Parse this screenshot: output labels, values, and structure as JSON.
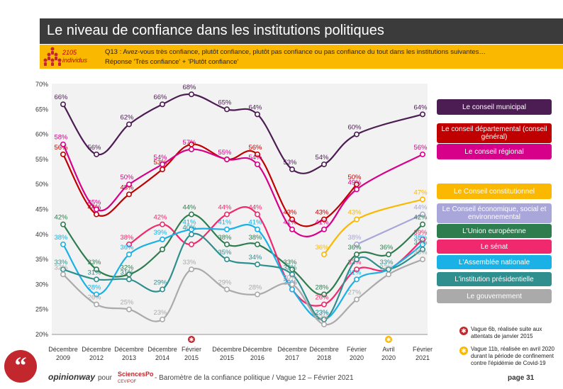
{
  "header": {
    "title": "Le niveau de confiance dans les institutions politiques",
    "sample_count": "2105",
    "sample_unit": "individus",
    "question": "Q13 : Avez-vous très confiance, plutôt confiance, plutôt pas confiance ou pas confiance du tout dans les institutions suivantes…",
    "response_note": "Réponse 'Très confiance' + 'Plutôt confiance'"
  },
  "chart_data": {
    "type": "line",
    "categories": [
      [
        "Décembre",
        "2009"
      ],
      [
        "Décembre",
        "2012"
      ],
      [
        "Décembre",
        "2013"
      ],
      [
        "Décembre",
        "2014"
      ],
      [
        "Février",
        "2015"
      ],
      [
        "Décembre",
        "2015"
      ],
      [
        "Décembre",
        "2016"
      ],
      [
        "Décembre",
        "2017"
      ],
      [
        "Décembre",
        "2018"
      ],
      [
        "Février",
        "2020"
      ],
      [
        "Avril",
        "2020"
      ],
      [
        "Février",
        "2021"
      ]
    ],
    "ylim": [
      20,
      70
    ],
    "yticks": [
      "20%",
      "25%",
      "30%",
      "35%",
      "40%",
      "45%",
      "50%",
      "55%",
      "60%",
      "65%",
      "70%"
    ],
    "series": [
      {
        "name": "Le conseil municipal",
        "color": "#4b1d52",
        "values": [
          66,
          56,
          62,
          66,
          68,
          65,
          64,
          53,
          54,
          60,
          null,
          64
        ],
        "labels": [
          "66%",
          "56%",
          "62%",
          "66%",
          "68%",
          "65%",
          "64%",
          "53%",
          "54%",
          "60%",
          "",
          "64%"
        ]
      },
      {
        "name": "Le conseil départemental (conseil général)",
        "color": "#c00000",
        "values": [
          56,
          44,
          48,
          53,
          58,
          55,
          56,
          43,
          43,
          50,
          null,
          null
        ],
        "labels": [
          "56%",
          "44%",
          "48%",
          "53%",
          "",
          "",
          "56%",
          "43%",
          "43%",
          "50%",
          "",
          ""
        ]
      },
      {
        "name": "Le conseil régional",
        "color": "#d7008a",
        "values": [
          58,
          45,
          50,
          54,
          57,
          55,
          54,
          41,
          41,
          49,
          null,
          56
        ],
        "labels": [
          "58%",
          "45%",
          "50%",
          "54%",
          "57%",
          "55%",
          "54%",
          "41%",
          "41%",
          "49%",
          "",
          "56%"
        ]
      },
      {
        "name": "Le Conseil constitutionnel",
        "color": "#fbb800",
        "values": [
          null,
          null,
          null,
          null,
          null,
          null,
          null,
          null,
          36,
          43,
          null,
          47
        ],
        "labels": [
          "",
          "",
          "",
          "",
          "",
          "",
          "",
          "",
          "36%",
          "43%",
          "",
          "47%"
        ]
      },
      {
        "name": "Le Conseil économique, social et environnemental",
        "color": "#a9a7d9",
        "values": [
          null,
          null,
          null,
          null,
          null,
          null,
          null,
          null,
          null,
          38,
          null,
          44
        ],
        "labels": [
          "",
          "",
          "",
          "",
          "",
          "",
          "",
          "",
          "",
          "38%",
          "",
          "44%"
        ]
      },
      {
        "name": "L'Union européenne",
        "color": "#2e7d4f",
        "values": [
          42,
          33,
          32,
          37,
          44,
          38,
          38,
          33,
          28,
          36,
          36,
          42
        ],
        "labels": [
          "42%",
          "33%",
          "32%",
          "",
          "44%",
          "38%",
          "38%",
          "33%",
          "28%",
          "36%",
          "36%",
          "42%"
        ]
      },
      {
        "name": "Le sénat",
        "color": "#f0296e",
        "values": [
          null,
          null,
          38,
          42,
          38,
          44,
          44,
          29,
          26,
          33,
          33,
          39
        ],
        "labels": [
          "",
          "",
          "38%",
          "42%",
          "",
          "44%",
          "44%",
          "29%",
          "26%",
          "33%",
          "",
          "39%"
        ]
      },
      {
        "name": "L'Assemblée nationale",
        "color": "#19b1e6",
        "values": [
          38,
          28,
          36,
          39,
          41,
          41,
          41,
          29,
          23,
          31,
          33,
          38
        ],
        "labels": [
          "38%",
          "28%",
          "36%",
          "39%",
          "41%",
          "41%",
          "41%",
          "29%",
          "23%",
          "31%",
          "",
          "38%"
        ]
      },
      {
        "name": "L'institution présidentielle",
        "color": "#2f8f8f",
        "values": [
          33,
          31,
          31,
          29,
          40,
          35,
          34,
          32,
          23,
          35,
          33,
          37
        ],
        "labels": [
          "33%",
          "31%",
          "31%",
          "29%",
          "40%",
          "35%",
          "34%",
          "32%",
          "23%",
          "",
          "33%",
          "37%"
        ]
      },
      {
        "name": "Le gouvernement",
        "color": "#aaaaaa",
        "values": [
          32,
          26,
          25,
          23,
          33,
          29,
          28,
          30,
          22,
          27,
          32,
          35
        ],
        "labels": [
          "32%",
          "26%",
          "25%",
          "23%",
          "33%",
          "29%",
          "28%",
          "30%",
          "22%",
          "27%",
          "32%",
          "35%"
        ]
      }
    ],
    "markers": [
      {
        "category_index": 4,
        "color": "#c1272d"
      },
      {
        "category_index": 10,
        "color": "#fbb800"
      }
    ]
  },
  "legend": [
    {
      "label": "Le conseil municipal",
      "color": "#4b1d52"
    },
    {
      "label": "Le conseil départemental (conseil général)",
      "color": "#c00000"
    },
    {
      "label": "Le conseil régional",
      "color": "#d7008a"
    },
    {
      "label": "Le Conseil constitutionnel",
      "color": "#fbb800"
    },
    {
      "label": "Le Conseil économique, social et environnemental",
      "color": "#a9a7d9"
    },
    {
      "label": "L'Union européenne",
      "color": "#2e7d4f"
    },
    {
      "label": "Le sénat",
      "color": "#f0296e"
    },
    {
      "label": "L'Assemblée nationale",
      "color": "#19b1e6"
    },
    {
      "label": "L'institution présidentielle",
      "color": "#2f8f8f"
    },
    {
      "label": "Le gouvernement",
      "color": "#aaaaaa"
    }
  ],
  "notes": {
    "wave6b": "Vague 6b, réalisée suite aux attentats de janvier 2015",
    "wave11b": "Vague 11b, réalisée en avril 2020 durant la période de confinement contre l'épidémie de Covid-19"
  },
  "footer": {
    "brand": "opinionway",
    "pour": "pour",
    "partner": "SciencesPo",
    "partner_sub": "CEVIPOF",
    "caption": "-  Baromètre de la confiance politique / Vague 12 – Février 2021",
    "page": "page 31"
  }
}
